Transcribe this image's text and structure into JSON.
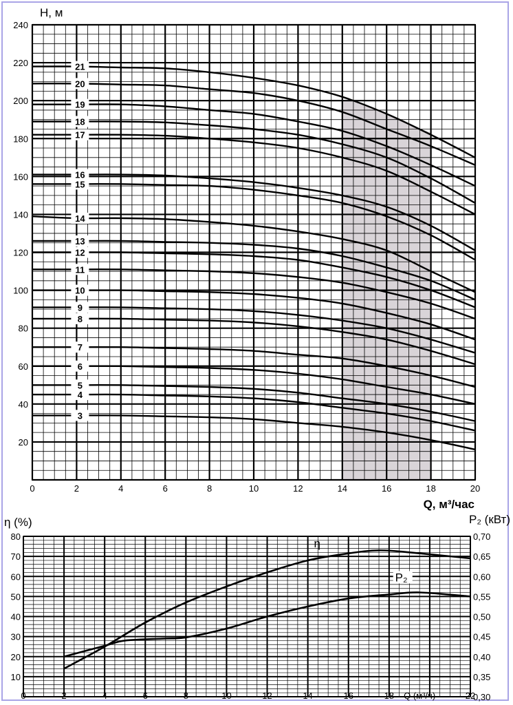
{
  "chart_data": [
    {
      "type": "line",
      "ylabel": "H, м",
      "xlabel": "Q, м³/час",
      "xlim": [
        0,
        20
      ],
      "ylim": [
        0,
        240
      ],
      "x_ticks": [
        0,
        2,
        4,
        6,
        8,
        10,
        12,
        14,
        16,
        18,
        20
      ],
      "y_ticks": [
        20,
        40,
        60,
        80,
        100,
        120,
        140,
        160,
        180,
        200,
        220,
        240
      ],
      "grid": true,
      "shaded_range": [
        14,
        18
      ],
      "x": [
        0,
        2,
        4,
        6,
        8,
        10,
        12,
        14,
        16,
        18,
        20
      ],
      "series": [
        {
          "name": "3",
          "values": [
            34,
            34,
            34,
            33.5,
            33,
            32,
            30,
            28,
            25,
            21,
            16
          ]
        },
        {
          "name": "4",
          "values": [
            45,
            45,
            45,
            44.5,
            44,
            43,
            41,
            38,
            35,
            31,
            26
          ]
        },
        {
          "name": "5",
          "values": [
            50,
            50,
            50,
            49.5,
            49,
            48,
            46,
            43,
            40,
            36,
            31
          ]
        },
        {
          "name": "6",
          "values": [
            60,
            60,
            60,
            59.5,
            59,
            58,
            56,
            53,
            49,
            45,
            40
          ]
        },
        {
          "name": "7",
          "values": [
            70,
            70,
            70,
            69.5,
            69,
            68,
            66,
            64,
            60,
            55,
            49
          ]
        },
        {
          "name": "8",
          "values": [
            85,
            85,
            85,
            84.5,
            84,
            83,
            81,
            78,
            74,
            68,
            61
          ]
        },
        {
          "name": "9",
          "values": [
            91,
            91,
            91,
            90.5,
            90,
            89,
            87,
            84,
            80,
            74,
            67
          ]
        },
        {
          "name": "10",
          "values": [
            100,
            100,
            100,
            99.5,
            99,
            98,
            96,
            93,
            88,
            82,
            74
          ]
        },
        {
          "name": "11",
          "values": [
            111,
            111,
            111,
            110.5,
            110,
            109,
            107,
            104,
            99,
            93,
            85
          ]
        },
        {
          "name": "12",
          "values": [
            120,
            120,
            120,
            119.5,
            119,
            118,
            116,
            112,
            107,
            100,
            91
          ]
        },
        {
          "name": "13",
          "values": [
            126,
            126,
            126,
            125.5,
            125,
            124,
            122,
            118,
            112,
            105,
            95
          ]
        },
        {
          "name": "14",
          "values": [
            139,
            138,
            138,
            137.5,
            136,
            134,
            131,
            127,
            121,
            110,
            99
          ]
        },
        {
          "name": "15",
          "values": [
            156,
            156,
            156,
            155.5,
            155,
            153,
            150,
            146,
            139,
            129,
            116
          ]
        },
        {
          "name": "16",
          "values": [
            161,
            161,
            161,
            160.5,
            159,
            157,
            154,
            150,
            144,
            134,
            121
          ]
        },
        {
          "name": "17",
          "values": [
            182,
            182,
            182,
            181.5,
            180,
            178,
            175,
            170,
            163,
            152,
            140
          ]
        },
        {
          "name": "18",
          "values": [
            189,
            189,
            189,
            188.5,
            187,
            185,
            182,
            177,
            170,
            159,
            146
          ]
        },
        {
          "name": "19",
          "values": [
            198,
            198,
            198,
            197,
            195,
            193,
            189,
            184,
            176,
            166,
            155
          ]
        },
        {
          "name": "20",
          "values": [
            209,
            209,
            208.5,
            208,
            206,
            204,
            200,
            194,
            185,
            176,
            166
          ]
        },
        {
          "name": "21",
          "values": [
            218,
            218,
            217.5,
            217,
            215,
            212,
            208,
            202,
            193,
            182,
            170
          ]
        }
      ]
    },
    {
      "type": "line",
      "xlabel": "Q (м³/ч)",
      "ylabel": "η (%)",
      "y2label": "P₂ (кВт)",
      "xlim": [
        0,
        22
      ],
      "ylim": [
        0,
        80
      ],
      "y2lim": [
        0.3,
        0.7
      ],
      "x_ticks": [
        "0",
        "2",
        "4",
        "6",
        "8",
        "10",
        "12",
        "14",
        "16",
        "18",
        "20",
        "22"
      ],
      "y_ticks": [
        "10",
        "20",
        "30",
        "40",
        "50",
        "60",
        "70",
        "80"
      ],
      "y2_ticks": [
        "0,30",
        "0,35",
        "0,40",
        "0,45",
        "0,50",
        "0,55",
        "0,60",
        "0,65",
        "0,70"
      ],
      "grid": true,
      "series": [
        {
          "name": "η",
          "axis": "left",
          "x": [
            2,
            4,
            6,
            8,
            10,
            12,
            14,
            16,
            17.5,
            19,
            22
          ],
          "values": [
            14,
            25,
            37,
            47,
            55,
            62,
            68,
            71.5,
            73,
            72,
            69
          ]
        },
        {
          "name": "P₂",
          "axis": "right",
          "x": [
            2,
            4,
            5,
            7,
            8,
            10,
            12,
            14,
            16,
            18,
            19.5,
            22
          ],
          "values": [
            0.4,
            0.427,
            0.44,
            0.445,
            0.448,
            0.47,
            0.5,
            0.525,
            0.545,
            0.555,
            0.56,
            0.55
          ]
        }
      ]
    }
  ]
}
